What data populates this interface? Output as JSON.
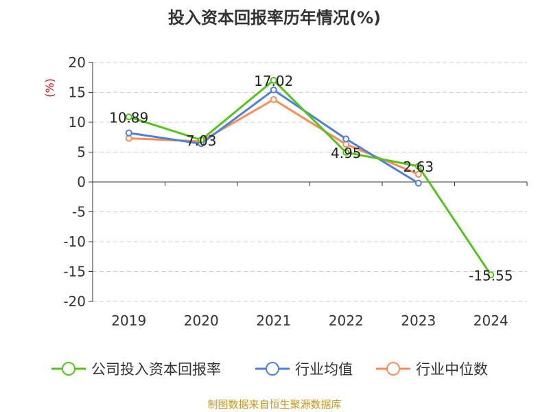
{
  "chart_data": {
    "type": "line",
    "title": "投入资本回报率历年情况(%)",
    "ylabel": "(%)",
    "xlabel": "",
    "categories": [
      "2019",
      "2020",
      "2021",
      "2022",
      "2023",
      "2024"
    ],
    "ylim": [
      -20,
      20
    ],
    "yticks": [
      "20",
      "15",
      "10",
      "5",
      "0",
      "-5",
      "-10",
      "-15",
      "-20"
    ],
    "grid": true,
    "legend_position": "bottom",
    "series": [
      {
        "name": "公司投入资本回报率",
        "color": "#52c41a",
        "values": [
          10.89,
          7.03,
          17.02,
          4.95,
          2.63,
          -15.55
        ],
        "labels": [
          "10.89",
          "7.03",
          "17.02",
          "4.95",
          "2.63",
          "-15.55"
        ]
      },
      {
        "name": "行业均值",
        "color": "#4e7fe0",
        "values": [
          8.2,
          6.4,
          15.4,
          7.2,
          -0.2,
          null
        ]
      },
      {
        "name": "行业中位数",
        "color": "#ff8c55",
        "values": [
          7.3,
          6.8,
          13.8,
          6.3,
          1.3,
          null
        ]
      }
    ]
  },
  "source": "制图数据来自恒生聚源数据库"
}
